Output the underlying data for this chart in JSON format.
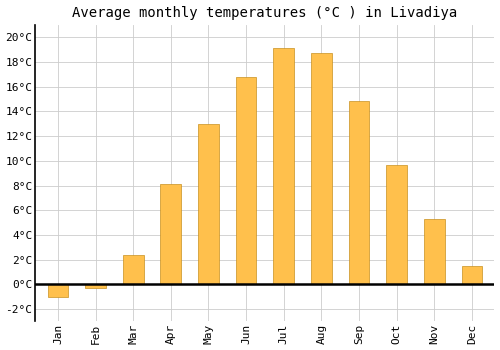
{
  "title": "Average monthly temperatures (°C ) in Livadiya",
  "months": [
    "Jan",
    "Feb",
    "Mar",
    "Apr",
    "May",
    "Jun",
    "Jul",
    "Aug",
    "Sep",
    "Oct",
    "Nov",
    "Dec"
  ],
  "temperatures": [
    -1.0,
    -0.3,
    2.4,
    8.1,
    13.0,
    16.8,
    19.1,
    18.7,
    14.8,
    9.7,
    5.3,
    1.5
  ],
  "bar_color": "#FFC04C",
  "bar_edge_color": "#C89020",
  "ylim": [
    -3,
    21
  ],
  "yticks": [
    -2,
    0,
    2,
    4,
    6,
    8,
    10,
    12,
    14,
    16,
    18,
    20
  ],
  "ytick_labels": [
    "-2°C",
    "0°C",
    "2°C",
    "4°C",
    "6°C",
    "8°C",
    "10°C",
    "12°C",
    "14°C",
    "16°C",
    "18°C",
    "20°C"
  ],
  "background_color": "#FFFFFF",
  "plot_bg_color": "#FFFFFF",
  "grid_color": "#CCCCCC",
  "title_fontsize": 10,
  "tick_fontsize": 8,
  "bar_width": 0.55
}
